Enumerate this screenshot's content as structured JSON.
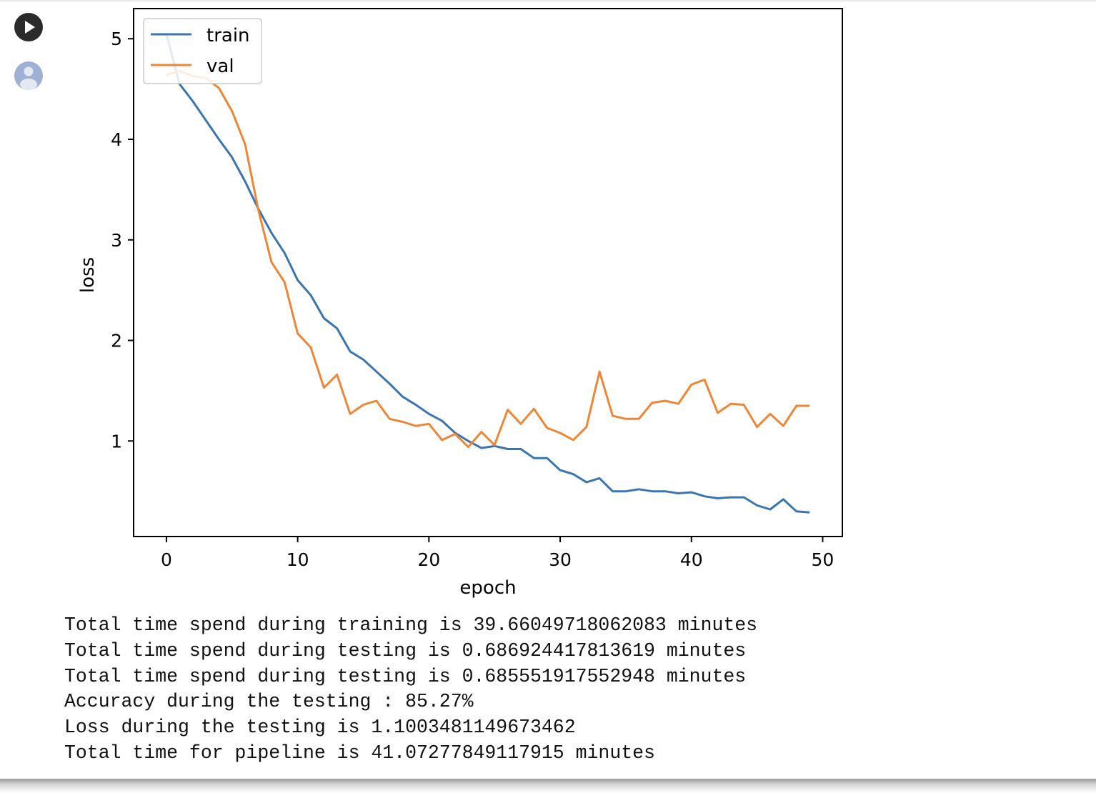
{
  "cell": {
    "run_icon": "play-icon",
    "avatar_icon": "user-avatar-icon"
  },
  "chart_data": {
    "type": "line",
    "xlabel": "epoch",
    "ylabel": "loss",
    "xlim": [
      -2.5,
      51.5
    ],
    "ylim": [
      0.05,
      5.3
    ],
    "xticks": [
      0,
      10,
      20,
      30,
      40,
      50
    ],
    "yticks": [
      1,
      2,
      3,
      4,
      5
    ],
    "grid": false,
    "legend_position": "upper-left",
    "x": [
      0,
      1,
      2,
      3,
      4,
      5,
      6,
      7,
      8,
      9,
      10,
      11,
      12,
      13,
      14,
      15,
      16,
      17,
      18,
      19,
      20,
      21,
      22,
      23,
      24,
      25,
      26,
      27,
      28,
      29,
      30,
      31,
      32,
      33,
      34,
      35,
      36,
      37,
      38,
      39,
      40,
      41,
      42,
      43,
      44,
      45,
      46,
      47,
      48,
      49
    ],
    "series": [
      {
        "name": "train",
        "color": "#3b75af",
        "values": [
          5.05,
          4.55,
          4.38,
          4.19,
          4.0,
          3.82,
          3.58,
          3.31,
          3.07,
          2.87,
          2.6,
          2.45,
          2.22,
          2.12,
          1.89,
          1.81,
          1.69,
          1.57,
          1.44,
          1.36,
          1.27,
          1.2,
          1.08,
          1.0,
          0.93,
          0.95,
          0.92,
          0.92,
          0.83,
          0.83,
          0.71,
          0.67,
          0.59,
          0.63,
          0.5,
          0.5,
          0.52,
          0.5,
          0.5,
          0.48,
          0.49,
          0.45,
          0.43,
          0.44,
          0.44,
          0.36,
          0.32,
          0.42,
          0.3,
          0.29
        ]
      },
      {
        "name": "val",
        "color": "#ef8636",
        "values": [
          4.64,
          4.68,
          4.63,
          4.61,
          4.51,
          4.28,
          3.95,
          3.3,
          2.78,
          2.58,
          2.07,
          1.93,
          1.53,
          1.66,
          1.27,
          1.36,
          1.4,
          1.22,
          1.19,
          1.15,
          1.17,
          1.01,
          1.07,
          0.94,
          1.09,
          0.96,
          1.31,
          1.17,
          1.32,
          1.13,
          1.08,
          1.01,
          1.14,
          1.69,
          1.25,
          1.22,
          1.22,
          1.38,
          1.4,
          1.37,
          1.56,
          1.61,
          1.28,
          1.37,
          1.36,
          1.14,
          1.27,
          1.15,
          1.35,
          1.35
        ]
      }
    ]
  },
  "output": {
    "lines": [
      "Total time spend during training is 39.66049718062083 minutes",
      "Total time spend during testing is 0.686924417813619 minutes",
      "Total time spend during testing is 0.685551917552948 minutes",
      "Accuracy during the testing : 85.27%",
      "Loss during the testing is 1.1003481149673462",
      "Total time for pipeline is 41.07277849117915 minutes"
    ]
  }
}
